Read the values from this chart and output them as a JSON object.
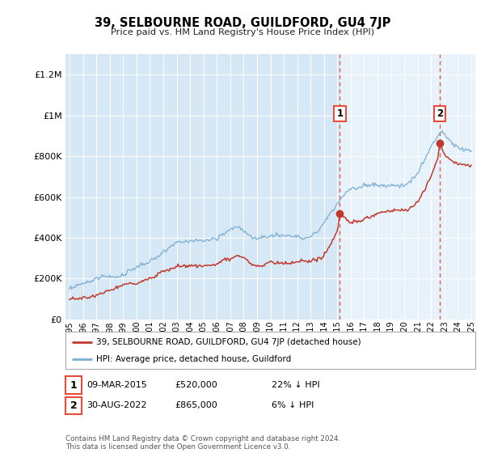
{
  "title": "39, SELBOURNE ROAD, GUILDFORD, GU4 7JP",
  "subtitle": "Price paid vs. HM Land Registry's House Price Index (HPI)",
  "ylabel_ticks": [
    "£0",
    "£200K",
    "£400K",
    "£600K",
    "£800K",
    "£1M",
    "£1.2M"
  ],
  "ytick_vals": [
    0,
    200000,
    400000,
    600000,
    800000,
    1000000,
    1200000
  ],
  "ylim": [
    0,
    1300000
  ],
  "xlim_start": 1994.7,
  "xlim_end": 2025.3,
  "sale1_x": 2015.19,
  "sale1_y": 520000,
  "sale2_x": 2022.66,
  "sale2_y": 865000,
  "sale1_label": "1",
  "sale2_label": "2",
  "legend_house": "39, SELBOURNE ROAD, GUILDFORD, GU4 7JP (detached house)",
  "legend_hpi": "HPI: Average price, detached house, Guildford",
  "table_row1": [
    "1",
    "09-MAR-2015",
    "£520,000",
    "22% ↓ HPI"
  ],
  "table_row2": [
    "2",
    "30-AUG-2022",
    "£865,000",
    "6% ↓ HPI"
  ],
  "footnote": "Contains HM Land Registry data © Crown copyright and database right 2024.\nThis data is licensed under the Open Government Licence v3.0.",
  "color_red": "#c0392b",
  "color_blue": "#7bafd4",
  "color_dashed": "#e74c3c",
  "background_chart": "#d6e8f5",
  "background_chart_right": "#e8f2fa",
  "background_fig": "#ffffff"
}
